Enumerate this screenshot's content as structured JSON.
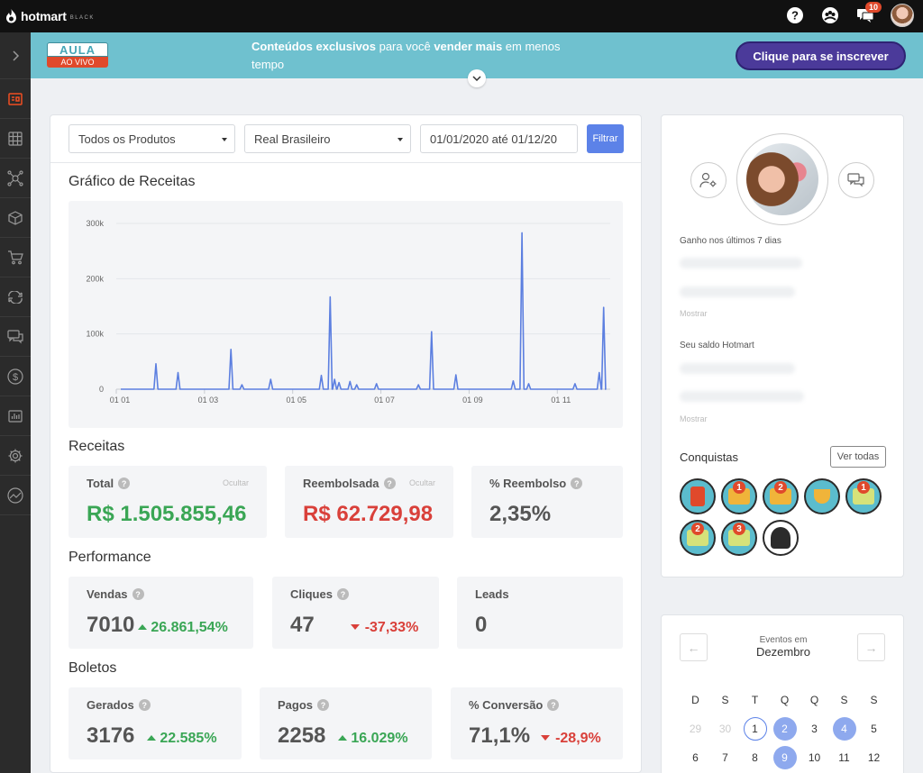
{
  "topbar": {
    "brand": "hotmart",
    "tier": "BLACK",
    "notifications_count": "10"
  },
  "sidebar": {
    "items": [
      "expand",
      "dashboard",
      "apps",
      "affiliates",
      "products",
      "sales",
      "subscriptions",
      "messages",
      "finance",
      "reports",
      "settings",
      "analytics"
    ]
  },
  "banner": {
    "aula_top": "AULA",
    "aula_bottom": "AO VIVO",
    "text_bold1": "Conteúdos exclusivos",
    "text_normal1": " para você ",
    "text_bold2": "vender mais",
    "text_normal2": " em menos tempo",
    "cta": "Clique para se inscrever"
  },
  "filters": {
    "product": "Todos os Produtos",
    "currency": "Real Brasileiro",
    "date_range": "01/01/2020 até 01/12/20",
    "button": "Filtrar"
  },
  "chart": {
    "title": "Gráfico de Receitas"
  },
  "chart_data": {
    "type": "line",
    "title": "Gráfico de Receitas",
    "xlabel": "",
    "ylabel": "",
    "ylim": [
      0,
      300000
    ],
    "y_ticks": [
      "0",
      "100k",
      "200k",
      "300k"
    ],
    "x_ticks": [
      "01 01",
      "01 03",
      "01 05",
      "01 07",
      "01 09",
      "01 11"
    ],
    "grid": true,
    "color": "#5c7fe0",
    "peaks": [
      {
        "month": 1.9,
        "value": 46000
      },
      {
        "month": 2.4,
        "value": 30000
      },
      {
        "month": 3.6,
        "value": 72000
      },
      {
        "month": 3.85,
        "value": 8000
      },
      {
        "month": 4.5,
        "value": 18000
      },
      {
        "month": 5.65,
        "value": 25000
      },
      {
        "month": 5.85,
        "value": 167000
      },
      {
        "month": 5.95,
        "value": 18000
      },
      {
        "month": 6.05,
        "value": 12000
      },
      {
        "month": 6.3,
        "value": 14000
      },
      {
        "month": 6.45,
        "value": 8000
      },
      {
        "month": 6.9,
        "value": 10000
      },
      {
        "month": 7.85,
        "value": 8000
      },
      {
        "month": 8.15,
        "value": 104000
      },
      {
        "month": 8.7,
        "value": 26000
      },
      {
        "month": 10.0,
        "value": 15000
      },
      {
        "month": 10.2,
        "value": 283000
      },
      {
        "month": 10.35,
        "value": 10000
      },
      {
        "month": 11.4,
        "value": 10000
      },
      {
        "month": 11.95,
        "value": 30000
      },
      {
        "month": 12.05,
        "value": 148000
      }
    ]
  },
  "receitas": {
    "title": "Receitas",
    "total_label": "Total",
    "total_hide": "Ocultar",
    "total_value": "R$ 1.505.855,46",
    "refund_label": "Reembolsada",
    "refund_hide": "Ocultar",
    "refund_value": "R$ 62.729,98",
    "refund_pct_label": "% Reembolso",
    "refund_pct_value": "2,35%"
  },
  "performance": {
    "title": "Performance",
    "sales_label": "Vendas",
    "sales_value": "7010",
    "sales_delta": "26.861,54%",
    "clicks_label": "Cliques",
    "clicks_value": "47",
    "clicks_delta": "-37,33%",
    "leads_label": "Leads",
    "leads_value": "0"
  },
  "boletos": {
    "title": "Boletos",
    "generated_label": "Gerados",
    "generated_value": "3176",
    "generated_delta": "22.585%",
    "paid_label": "Pagos",
    "paid_value": "2258",
    "paid_delta": "16.029%",
    "conversion_label": "% Conversão",
    "conversion_value": "71,1%",
    "conversion_delta": "-28,9%"
  },
  "profile": {
    "earned_label": "Ganho nos últimos 7 dias",
    "show1": "Mostrar",
    "balance_label": "Seu saldo Hotmart",
    "show2": "Mostrar",
    "achievements_title": "Conquistas",
    "see_all": "Ver todas"
  },
  "calendar": {
    "subtitle": "Eventos em",
    "month": "Dezembro",
    "weekdays": [
      "D",
      "S",
      "T",
      "Q",
      "Q",
      "S",
      "S"
    ],
    "row1": [
      "29",
      "30",
      "1",
      "2",
      "3",
      "4",
      "5"
    ],
    "row2": [
      "6",
      "7",
      "8",
      "9",
      "10",
      "11",
      "12"
    ]
  }
}
